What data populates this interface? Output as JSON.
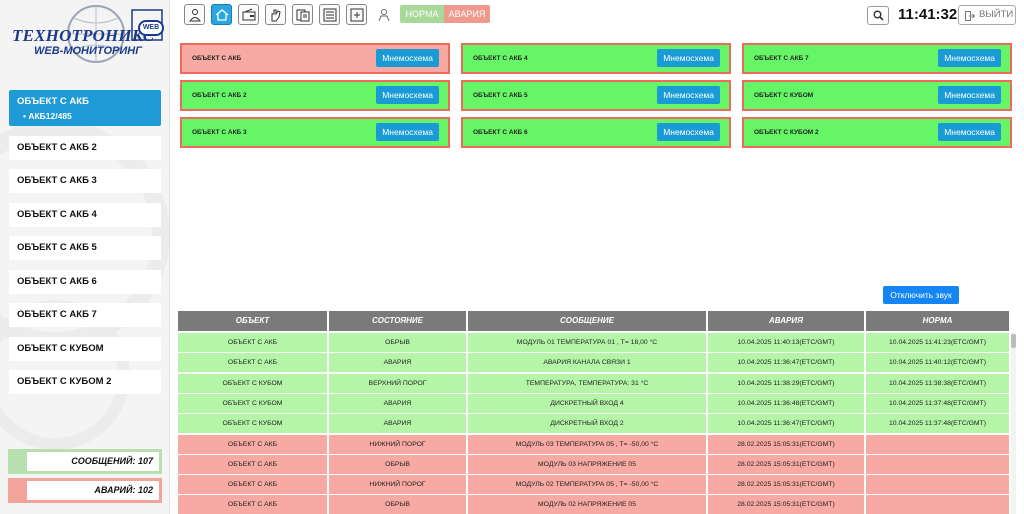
{
  "logo": {
    "brand": "ТЕХНОТРОНИКС",
    "sub": "WEB-МОНИТОРИНГ",
    "web": "WEB"
  },
  "sidebar": {
    "items": [
      {
        "label": "ОБЪЕКТ С АКБ",
        "child": "• АКБ12/485"
      },
      {
        "label": "ОБЪЕКТ С АКБ 2"
      },
      {
        "label": "ОБЪЕКТ С АКБ 3"
      },
      {
        "label": "ОБЪЕКТ С АКБ 4"
      },
      {
        "label": "ОБЪЕКТ С АКБ 5"
      },
      {
        "label": "ОБЪЕКТ С АКБ 6"
      },
      {
        "label": "ОБЪЕКТ С АКБ 7"
      },
      {
        "label": "ОБЪЕКТ С КУБОМ"
      },
      {
        "label": "ОБЪЕКТ С КУБОМ 2"
      }
    ],
    "messages": "СООБЩЕНИЙ: 107",
    "alarms": "АВАРИЙ: 102"
  },
  "toolbar": {
    "icons": [
      "user-settings-icon",
      "home-icon",
      "wallet-icon",
      "hand-icon",
      "documents-icon",
      "list-icon",
      "add-box-icon",
      "worker-icon"
    ],
    "norm_label": "НОРМА",
    "alarm_label": "АВАРИЯ"
  },
  "header": {
    "clock": "11:41:32",
    "logout_label": "ВЫЙТИ"
  },
  "cards": [
    {
      "title": "ОБЪЕКТ С АКБ",
      "button": "Мнемосхема",
      "status": "alarm"
    },
    {
      "title": "ОБЪЕКТ С АКБ 2",
      "button": "Мнемосхема",
      "status": "ok"
    },
    {
      "title": "ОБЪЕКТ С АКБ 3",
      "button": "Мнемосхема",
      "status": "ok"
    },
    {
      "title": "ОБЪЕКТ С АКБ 4",
      "button": "Мнемосхема",
      "status": "ok"
    },
    {
      "title": "ОБЪЕКТ С АКБ 5",
      "button": "Мнемосхема",
      "status": "ok"
    },
    {
      "title": "ОБЪЕКТ С АКБ 6",
      "button": "Мнемосхема",
      "status": "ok"
    },
    {
      "title": "ОБЪЕКТ С АКБ 7",
      "button": "Мнемосхема",
      "status": "ok"
    },
    {
      "title": "ОБЪЕКТ С КУБОМ",
      "button": "Мнемосхема",
      "status": "ok"
    },
    {
      "title": "ОБЪЕКТ С КУБОМ 2",
      "button": "Мнемосхема",
      "status": "ok"
    }
  ],
  "sound_button": "Отключить звук",
  "table": {
    "columns": [
      "ОБЪЕКТ",
      "СОСТОЯНИЕ",
      "СООБЩЕНИЕ",
      "АВАРИЯ",
      "НОРМА"
    ],
    "rows": [
      {
        "status": "green",
        "cells": [
          "ОБЪЕКТ С АКБ",
          "ОБРЫВ",
          "МОДУЛЬ 01 ТЕМПЕРАТУРА 01 , T= 18,00 °C",
          "10.04.2025 11:40:13(ETC/GMT)",
          "10.04.2025 11:41:23(ETC/GMT)"
        ]
      },
      {
        "status": "green",
        "cells": [
          "ОБЪЕКТ С АКБ",
          "АВАРИЯ",
          "АВАРИЯ КАНАЛА СВЯЗИ 1",
          "10.04.2025 11:36:47(ETC/GMT)",
          "10.04.2025 11:40:12(ETC/GMT)"
        ]
      },
      {
        "status": "green",
        "cells": [
          "ОБЪЕКТ С КУБОМ",
          "ВЕРХНИЙ ПОРОГ",
          "ТЕМПЕРАТУРА, ТЕМПЕРАТУРА: 31 °C",
          "10.04.2025 11:38:29(ETC/GMT)",
          "10.04.2025 11:38:38(ETC/GMT)"
        ]
      },
      {
        "status": "green",
        "cells": [
          "ОБЪЕКТ С КУБОМ",
          "АВАРИЯ",
          "ДИСКРЕТНЫЙ ВХОД 4",
          "10.04.2025 11:36:48(ETC/GMT)",
          "10.04.2025 11:37:48(ETC/GMT)"
        ]
      },
      {
        "status": "green",
        "cells": [
          "ОБЪЕКТ С КУБОМ",
          "АВАРИЯ",
          "ДИСКРЕТНЫЙ ВХОД 2",
          "10.04.2025 11:36:47(ETC/GMT)",
          "10.04.2025 11:37:48(ETC/GMT)"
        ]
      },
      {
        "status": "red",
        "cells": [
          "ОБЪЕКТ С АКБ",
          "НИЖНИЙ ПОРОГ",
          "МОДУЛЬ 03 ТЕМПЕРАТУРА 05 , T= -50,00 °C",
          "28.02.2025 15:05:31(ETC/GMT)",
          ""
        ]
      },
      {
        "status": "red",
        "cells": [
          "ОБЪЕКТ С АКБ",
          "ОБРЫВ",
          "МОДУЛЬ 03 НАПРЯЖЕНИЕ 05",
          "28.02.2025 15:05:31(ETC/GMT)",
          ""
        ]
      },
      {
        "status": "red",
        "cells": [
          "ОБЪЕКТ С АКБ",
          "НИЖНИЙ ПОРОГ",
          "МОДУЛЬ 02 ТЕМПЕРАТУРА 05 , T= -50,00 °C",
          "28.02.2025 15:05:31(ETC/GMT)",
          ""
        ]
      },
      {
        "status": "red",
        "cells": [
          "ОБЪЕКТ С АКБ",
          "ОБРЫВ",
          "МОДУЛЬ 02 НАПРЯЖЕНИЕ 05",
          "28.02.2025 15:05:31(ETC/GMT)",
          ""
        ]
      }
    ]
  },
  "colors": {
    "accent": "#1e9bd7",
    "ok_card": "#66f566",
    "alarm_card": "#f7a9a3",
    "row_ok": "#b4f5a8",
    "row_alarm": "#f7a9a3",
    "header": "#7a7a7a"
  }
}
